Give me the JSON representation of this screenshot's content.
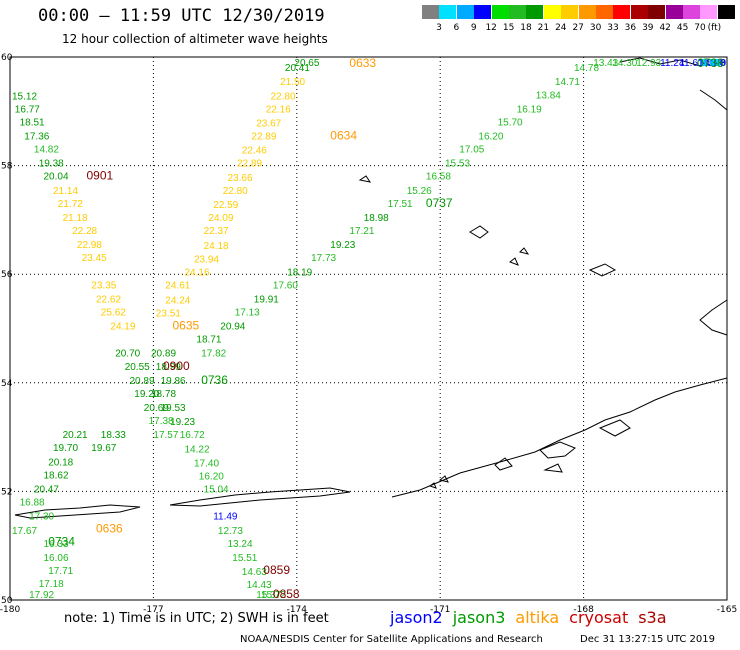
{
  "header": {
    "title": "00:00 – 11:59 UTC 12/30/2019",
    "subtitle": "12 hour collection of altimeter wave heights"
  },
  "scale": {
    "unit": "(ft)",
    "colors": [
      "#808080",
      "#00e0ff",
      "#00aaff",
      "#0000ff",
      "#00dd00",
      "#22bb22",
      "#009900",
      "#ffff00",
      "#ffcc00",
      "#ff9900",
      "#ff6600",
      "#ff0000",
      "#aa0000",
      "#800000",
      "#990099",
      "#dd44dd",
      "#ff99ff",
      "#000000"
    ],
    "labels": [
      "3",
      "6",
      "9",
      "12",
      "15",
      "18",
      "21",
      "24",
      "27",
      "30",
      "33",
      "36",
      "39",
      "42",
      "45",
      "70"
    ]
  },
  "map": {
    "x_ticks": [
      "-180",
      "-177",
      "-174",
      "-171",
      "-168",
      "-165"
    ],
    "y_ticks": [
      "60",
      "58",
      "56",
      "54",
      "52",
      "50"
    ],
    "grid_line_color": "#000000",
    "coast_color": "#000000"
  },
  "tracks": {
    "wave_labels": [
      {
        "text": "20.65",
        "lon": -174.05,
        "lat": 59.98,
        "color": "#009900"
      },
      {
        "text": "20.41",
        "lon": -174.25,
        "lat": 59.74,
        "color": "#009900"
      },
      {
        "text": "21.50",
        "lon": -174.35,
        "lat": 59.48,
        "color": "#ffcc00"
      },
      {
        "text": "22.80",
        "lon": -174.55,
        "lat": 59.22,
        "color": "#ffcc00"
      },
      {
        "text": "22.16",
        "lon": -174.65,
        "lat": 58.98,
        "color": "#ffcc00"
      },
      {
        "text": "23.67",
        "lon": -174.85,
        "lat": 58.72,
        "color": "#ffcc00"
      },
      {
        "text": "22.89",
        "lon": -174.95,
        "lat": 58.48,
        "color": "#ffcc00"
      },
      {
        "text": "22.46",
        "lon": -175.15,
        "lat": 58.22,
        "color": "#ffcc00"
      },
      {
        "text": "22.89",
        "lon": -175.25,
        "lat": 57.98,
        "color": "#ffcc00"
      },
      {
        "text": "23.66",
        "lon": -175.45,
        "lat": 57.72,
        "color": "#ffcc00"
      },
      {
        "text": "22.80",
        "lon": -175.55,
        "lat": 57.48,
        "color": "#ffcc00"
      },
      {
        "text": "22.59",
        "lon": -175.75,
        "lat": 57.22,
        "color": "#ffcc00"
      },
      {
        "text": "24.09",
        "lon": -175.85,
        "lat": 56.98,
        "color": "#ffcc00"
      },
      {
        "text": "22.37",
        "lon": -175.95,
        "lat": 56.74,
        "color": "#ffcc00"
      },
      {
        "text": "24.18",
        "lon": -175.95,
        "lat": 56.46,
        "color": "#ffcc00"
      },
      {
        "text": "23.94",
        "lon": -176.15,
        "lat": 56.22,
        "color": "#ffcc00"
      },
      {
        "text": "24.16",
        "lon": -176.35,
        "lat": 55.98,
        "color": "#ffcc00"
      },
      {
        "text": "24.61",
        "lon": -176.75,
        "lat": 55.74,
        "color": "#ffcc00"
      },
      {
        "text": "24.24",
        "lon": -176.75,
        "lat": 55.46,
        "color": "#ffcc00"
      },
      {
        "text": "23.51",
        "lon": -176.95,
        "lat": 55.22,
        "color": "#ffcc00"
      },
      {
        "text": "20.89",
        "lon": -177.05,
        "lat": 54.48,
        "color": "#009900"
      },
      {
        "text": "18.99",
        "lon": -176.95,
        "lat": 54.24,
        "color": "#009900"
      },
      {
        "text": "19.86",
        "lon": -176.85,
        "lat": 53.98,
        "color": "#009900"
      },
      {
        "text": "18.78",
        "lon": -177.05,
        "lat": 53.74,
        "color": "#009900"
      },
      {
        "text": "19.53",
        "lon": -176.85,
        "lat": 53.48,
        "color": "#009900"
      },
      {
        "text": "19.23",
        "lon": -176.65,
        "lat": 53.22,
        "color": "#009900"
      },
      {
        "text": "16.72",
        "lon": -176.45,
        "lat": 52.98,
        "color": "#22bb22"
      },
      {
        "text": "14.22",
        "lon": -176.35,
        "lat": 52.72,
        "color": "#22bb22"
      },
      {
        "text": "17.40",
        "lon": -176.15,
        "lat": 52.46,
        "color": "#22bb22"
      },
      {
        "text": "16.20",
        "lon": -176.05,
        "lat": 52.22,
        "color": "#22bb22"
      },
      {
        "text": "15.04",
        "lon": -175.95,
        "lat": 51.98,
        "color": "#22bb22"
      },
      {
        "text": "11.49",
        "lon": -175.75,
        "lat": 51.48,
        "color": "#0000ff"
      },
      {
        "text": "12.73",
        "lon": -175.65,
        "lat": 51.22,
        "color": "#22bb22"
      },
      {
        "text": "13.24",
        "lon": -175.45,
        "lat": 50.98,
        "color": "#22bb22"
      },
      {
        "text": "15.51",
        "lon": -175.35,
        "lat": 50.72,
        "color": "#22bb22"
      },
      {
        "text": "14.63",
        "lon": -175.15,
        "lat": 50.46,
        "color": "#22bb22"
      },
      {
        "text": "14.43",
        "lon": -175.05,
        "lat": 50.22,
        "color": "#22bb22"
      },
      {
        "text": "15.37",
        "lon": -174.85,
        "lat": 49.98,
        "color": "#22bb22"
      },
      {
        "text": "15.72",
        "lon": -174.75,
        "lat": 49.74,
        "color": "#22bb22"
      },
      {
        "text": "15.12",
        "lon": -180.0,
        "lat": 59.22,
        "color": "#009900"
      },
      {
        "text": "16.77",
        "lon": -179.9,
        "lat": 58.98,
        "color": "#009900"
      },
      {
        "text": "18.51",
        "lon": -179.8,
        "lat": 58.74,
        "color": "#009900"
      },
      {
        "text": "17.36",
        "lon": -179.7,
        "lat": 58.48,
        "color": "#009900"
      },
      {
        "text": "14.82",
        "lon": -179.5,
        "lat": 58.24,
        "color": "#22bb22"
      },
      {
        "text": "19.38",
        "lon": -179.4,
        "lat": 57.98,
        "color": "#009900"
      },
      {
        "text": "20.04",
        "lon": -179.3,
        "lat": 57.74,
        "color": "#009900"
      },
      {
        "text": "21.14",
        "lon": -179.1,
        "lat": 57.48,
        "color": "#ffcc00"
      },
      {
        "text": "21.72",
        "lon": -179.0,
        "lat": 57.24,
        "color": "#ffcc00"
      },
      {
        "text": "21.18",
        "lon": -178.9,
        "lat": 56.98,
        "color": "#ffcc00"
      },
      {
        "text": "22.28",
        "lon": -178.7,
        "lat": 56.74,
        "color": "#ffcc00"
      },
      {
        "text": "22.98",
        "lon": -178.6,
        "lat": 56.48,
        "color": "#ffcc00"
      },
      {
        "text": "23.45",
        "lon": -178.5,
        "lat": 56.24,
        "color": "#ffcc00"
      },
      {
        "text": "23.35",
        "lon": -178.3,
        "lat": 55.74,
        "color": "#ffcc00"
      },
      {
        "text": "22.62",
        "lon": -178.2,
        "lat": 55.48,
        "color": "#ffcc00"
      },
      {
        "text": "25.62",
        "lon": -178.1,
        "lat": 55.24,
        "color": "#ffcc00"
      },
      {
        "text": "24.19",
        "lon": -177.9,
        "lat": 54.98,
        "color": "#ffcc00"
      },
      {
        "text": "20.70",
        "lon": -177.8,
        "lat": 54.48,
        "color": "#009900"
      },
      {
        "text": "20.55",
        "lon": -177.6,
        "lat": 54.24,
        "color": "#009900"
      },
      {
        "text": "20.89",
        "lon": -177.5,
        "lat": 53.98,
        "color": "#009900"
      },
      {
        "text": "19.20",
        "lon": -177.4,
        "lat": 53.74,
        "color": "#009900"
      },
      {
        "text": "20.69",
        "lon": -177.2,
        "lat": 53.48,
        "color": "#009900"
      },
      {
        "text": "17.38",
        "lon": -177.1,
        "lat": 53.24,
        "color": "#22bb22"
      },
      {
        "text": "17.57",
        "lon": -177.0,
        "lat": 52.98,
        "color": "#22bb22"
      },
      {
        "text": "20.21",
        "lon": -178.9,
        "lat": 52.98,
        "color": "#009900"
      },
      {
        "text": "19.70",
        "lon": -179.1,
        "lat": 52.74,
        "color": "#009900"
      },
      {
        "text": "20.18",
        "lon": -179.2,
        "lat": 52.48,
        "color": "#009900"
      },
      {
        "text": "18.62",
        "lon": -179.3,
        "lat": 52.24,
        "color": "#009900"
      },
      {
        "text": "20.47",
        "lon": -179.5,
        "lat": 51.98,
        "color": "#009900"
      },
      {
        "text": "16.88",
        "lon": -179.8,
        "lat": 51.74,
        "color": "#22bb22"
      },
      {
        "text": "17.30",
        "lon": -179.6,
        "lat": 51.48,
        "color": "#22bb22"
      },
      {
        "text": "17.67",
        "lon": -180.0,
        "lat": 51.22,
        "color": "#22bb22"
      },
      {
        "text": "16.33",
        "lon": -179.3,
        "lat": 50.98,
        "color": "#22bb22"
      },
      {
        "text": "16.06",
        "lon": -179.3,
        "lat": 50.72,
        "color": "#22bb22"
      },
      {
        "text": "17.71",
        "lon": -179.2,
        "lat": 50.48,
        "color": "#22bb22"
      },
      {
        "text": "17.18",
        "lon": -179.4,
        "lat": 50.24,
        "color": "#22bb22"
      },
      {
        "text": "17.92",
        "lon": -179.6,
        "lat": 49.98,
        "color": "#22bb22"
      },
      {
        "text": "18.33",
        "lon": -178.1,
        "lat": 52.98,
        "color": "#009900"
      },
      {
        "text": "19.67",
        "lon": -178.3,
        "lat": 52.74,
        "color": "#009900"
      },
      {
        "text": "18.71",
        "lon": -176.1,
        "lat": 54.74,
        "color": "#009900"
      },
      {
        "text": "17.82",
        "lon": -176.0,
        "lat": 54.48,
        "color": "#22bb22"
      },
      {
        "text": "20.94",
        "lon": -175.6,
        "lat": 54.98,
        "color": "#009900"
      },
      {
        "text": "17.13",
        "lon": -175.3,
        "lat": 55.24,
        "color": "#22bb22"
      },
      {
        "text": "19.91",
        "lon": -174.9,
        "lat": 55.48,
        "color": "#009900"
      },
      {
        "text": "17.60",
        "lon": -174.5,
        "lat": 55.74,
        "color": "#22bb22"
      },
      {
        "text": "18.19",
        "lon": -174.2,
        "lat": 55.98,
        "color": "#009900"
      },
      {
        "text": "17.73",
        "lon": -173.7,
        "lat": 56.24,
        "color": "#22bb22"
      },
      {
        "text": "19.23",
        "lon": -173.3,
        "lat": 56.48,
        "color": "#009900"
      },
      {
        "text": "17.21",
        "lon": -172.9,
        "lat": 56.74,
        "color": "#22bb22"
      },
      {
        "text": "18.98",
        "lon": -172.6,
        "lat": 56.98,
        "color": "#009900"
      },
      {
        "text": "17.51",
        "lon": -172.1,
        "lat": 57.24,
        "color": "#22bb22"
      },
      {
        "text": "15.26",
        "lon": -171.7,
        "lat": 57.48,
        "color": "#22bb22"
      },
      {
        "text": "16.58",
        "lon": -171.3,
        "lat": 57.74,
        "color": "#22bb22"
      },
      {
        "text": "15.53",
        "lon": -170.9,
        "lat": 57.98,
        "color": "#22bb22"
      },
      {
        "text": "17.05",
        "lon": -170.6,
        "lat": 58.24,
        "color": "#22bb22"
      },
      {
        "text": "16.20",
        "lon": -170.2,
        "lat": 58.48,
        "color": "#22bb22"
      },
      {
        "text": "15.70",
        "lon": -169.8,
        "lat": 58.74,
        "color": "#22bb22"
      },
      {
        "text": "16.19",
        "lon": -169.4,
        "lat": 58.98,
        "color": "#22bb22"
      },
      {
        "text": "13.84",
        "lon": -169.0,
        "lat": 59.24,
        "color": "#22bb22"
      },
      {
        "text": "14.71",
        "lon": -168.6,
        "lat": 59.48,
        "color": "#22bb22"
      },
      {
        "text": "14.78",
        "lon": -168.2,
        "lat": 59.74,
        "color": "#22bb22"
      },
      {
        "text": "13.43",
        "lon": -167.8,
        "lat": 59.98,
        "color": "#22bb22"
      },
      {
        "text": "14.30",
        "lon": -167.4,
        "lat": 60.24,
        "color": "#22bb22"
      },
      {
        "text": "12.93",
        "lon": -166.9,
        "lat": 60.48,
        "color": "#22bb22"
      },
      {
        "text": "11.24",
        "lon": -166.4,
        "lat": 60.74,
        "color": "#0000ff"
      },
      {
        "text": "11.61",
        "lon": -166.0,
        "lat": 60.98,
        "color": "#0000ff"
      },
      {
        "text": "11.17",
        "lon": -165.6,
        "lat": 61.24,
        "color": "#0000ff"
      },
      {
        "text": "11.08",
        "lon": -165.2,
        "lat": 61.48,
        "color": "#0000ff"
      },
      {
        "text": "10.30",
        "lon": -164.8,
        "lat": 61.74,
        "color": "#0000ff"
      },
      {
        "text": "9.98",
        "lon": -164.4,
        "lat": 61.98,
        "color": "#0000ff"
      },
      {
        "text": "9.14",
        "lon": -164.0,
        "lat": 62.24,
        "color": "#0000ff"
      },
      {
        "text": "8.90",
        "lon": -163.6,
        "lat": 62.48,
        "color": "#00aaff"
      },
      {
        "text": "6.35",
        "lon": -163.2,
        "lat": 62.74,
        "color": "#00aaff"
      },
      {
        "text": "5.44",
        "lon": -162.8,
        "lat": 62.98,
        "color": "#00e0ff"
      },
      {
        "text": "4.71",
        "lon": -162.4,
        "lat": 63.24,
        "color": "#00e0ff"
      }
    ],
    "time_labels": [
      {
        "text": "0633",
        "lon": -172.9,
        "lat": 59.98,
        "color": "#ff9900"
      },
      {
        "text": "0634",
        "lon": -173.3,
        "lat": 58.48,
        "color": "#ff9900"
      },
      {
        "text": "0901",
        "lon": -178.4,
        "lat": 57.74,
        "color": "#800000"
      },
      {
        "text": "0738",
        "lon": -165.5,
        "lat": 60.48,
        "color": "#009900"
      },
      {
        "text": "0737",
        "lon": -171.3,
        "lat": 57.24,
        "color": "#009900"
      },
      {
        "text": "0635",
        "lon": -176.6,
        "lat": 54.98,
        "color": "#ff9900"
      },
      {
        "text": "0900",
        "lon": -176.8,
        "lat": 54.24,
        "color": "#800000"
      },
      {
        "text": "0736",
        "lon": -176.0,
        "lat": 53.98,
        "color": "#009900"
      },
      {
        "text": "0636",
        "lon": -178.2,
        "lat": 51.24,
        "color": "#ff9900"
      },
      {
        "text": "0734",
        "lon": -179.2,
        "lat": 51.0,
        "color": "#009900"
      },
      {
        "text": "0859",
        "lon": -174.7,
        "lat": 50.48,
        "color": "#800000"
      },
      {
        "text": "0858",
        "lon": -174.5,
        "lat": 49.74,
        "color": "#800000"
      }
    ]
  },
  "footer": {
    "note": "note: 1) Time is in UTC; 2) SWH is in feet",
    "credit": "NOAA/NESDIS Center for Satellite Applications and Research",
    "timestamp": "Dec 31 13:27:15 UTC 2019",
    "legend": [
      {
        "text": "jason2",
        "color": "#0000ff"
      },
      {
        "text": "jason3",
        "color": "#009900"
      },
      {
        "text": "altika",
        "color": "#ff9900"
      },
      {
        "text": "cryosat",
        "color": "#cc0000"
      },
      {
        "text": "s3a",
        "color": "#aa0000"
      }
    ]
  }
}
